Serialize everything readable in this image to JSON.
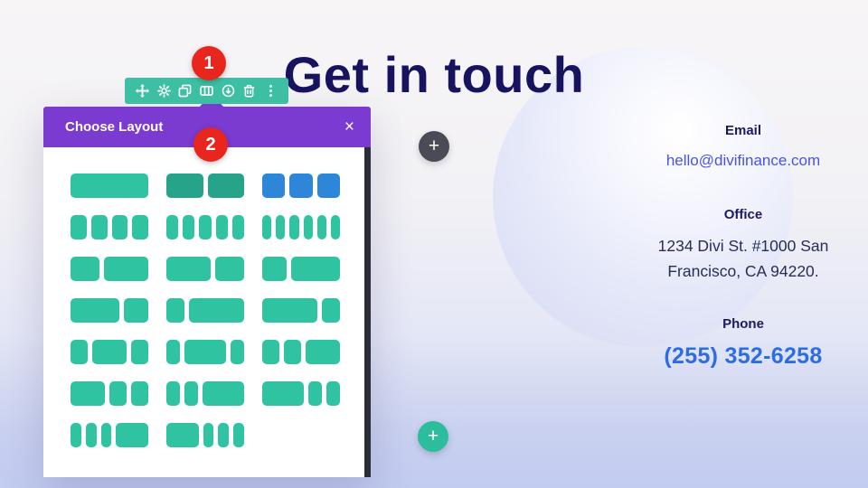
{
  "page": {
    "heading": "Get in touch"
  },
  "toolbar": {
    "icons": [
      "move",
      "settings",
      "duplicate",
      "columns",
      "save-to-library",
      "delete",
      "more-options"
    ]
  },
  "badges": {
    "step1": "1",
    "step2": "2"
  },
  "modal": {
    "title": "Choose Layout",
    "close_label": "×",
    "layout_rows": [
      [
        {
          "cols": [
            1
          ],
          "variant": "teal"
        },
        {
          "cols": [
            1,
            1
          ],
          "variant": "dark"
        },
        {
          "cols": [
            1,
            1,
            1
          ],
          "variant": "blue"
        }
      ],
      [
        {
          "cols": [
            1,
            1,
            1,
            1
          ],
          "variant": "teal"
        },
        {
          "cols": [
            1,
            1,
            1,
            1,
            1
          ],
          "variant": "teal"
        },
        {
          "cols": [
            1,
            1,
            1,
            1,
            1,
            1
          ],
          "variant": "teal"
        }
      ],
      [
        {
          "cols": [
            2,
            3
          ],
          "variant": "teal"
        },
        {
          "cols": [
            3,
            2
          ],
          "variant": "teal"
        },
        {
          "cols": [
            1,
            2
          ],
          "variant": "teal"
        }
      ],
      [
        {
          "cols": [
            2,
            1
          ],
          "variant": "teal"
        },
        {
          "cols": [
            1,
            3
          ],
          "variant": "teal"
        },
        {
          "cols": [
            3,
            1
          ],
          "variant": "teal"
        }
      ],
      [
        {
          "cols": [
            1,
            2,
            1
          ],
          "variant": "teal"
        },
        {
          "cols": [
            1,
            3,
            1
          ],
          "variant": "teal"
        },
        {
          "cols": [
            1,
            1,
            2
          ],
          "variant": "teal"
        }
      ],
      [
        {
          "cols": [
            2,
            1,
            1
          ],
          "variant": "teal"
        },
        {
          "cols": [
            1,
            1,
            3
          ],
          "variant": "teal"
        },
        {
          "cols": [
            3,
            1,
            1
          ],
          "variant": "teal"
        }
      ],
      [
        {
          "cols": [
            1,
            1,
            1,
            3
          ],
          "variant": "teal"
        },
        {
          "cols": [
            3,
            1,
            1,
            1
          ],
          "variant": "teal"
        }
      ]
    ]
  },
  "insert_buttons": {
    "dark_plus": "+",
    "teal_plus": "+"
  },
  "contact": {
    "email_label": "Email",
    "email_value": "hello@divifinance.com",
    "office_label": "Office",
    "office_value": "1234 Divi St. #1000 San Francisco, CA 94220.",
    "phone_label": "Phone",
    "phone_value": "(255) 352-6258"
  },
  "colors": {
    "toolbar_teal": "#3dbfa3",
    "block_teal": "#2fc3a2",
    "block_teal_dark": "#27a38a",
    "block_blue": "#2e86d9",
    "modal_purple": "#7b3ad0",
    "badge_red": "#e9261d",
    "heading_navy": "#17135e",
    "email_link_blue": "#4653e6",
    "phone_blue": "#2e6ce4"
  }
}
